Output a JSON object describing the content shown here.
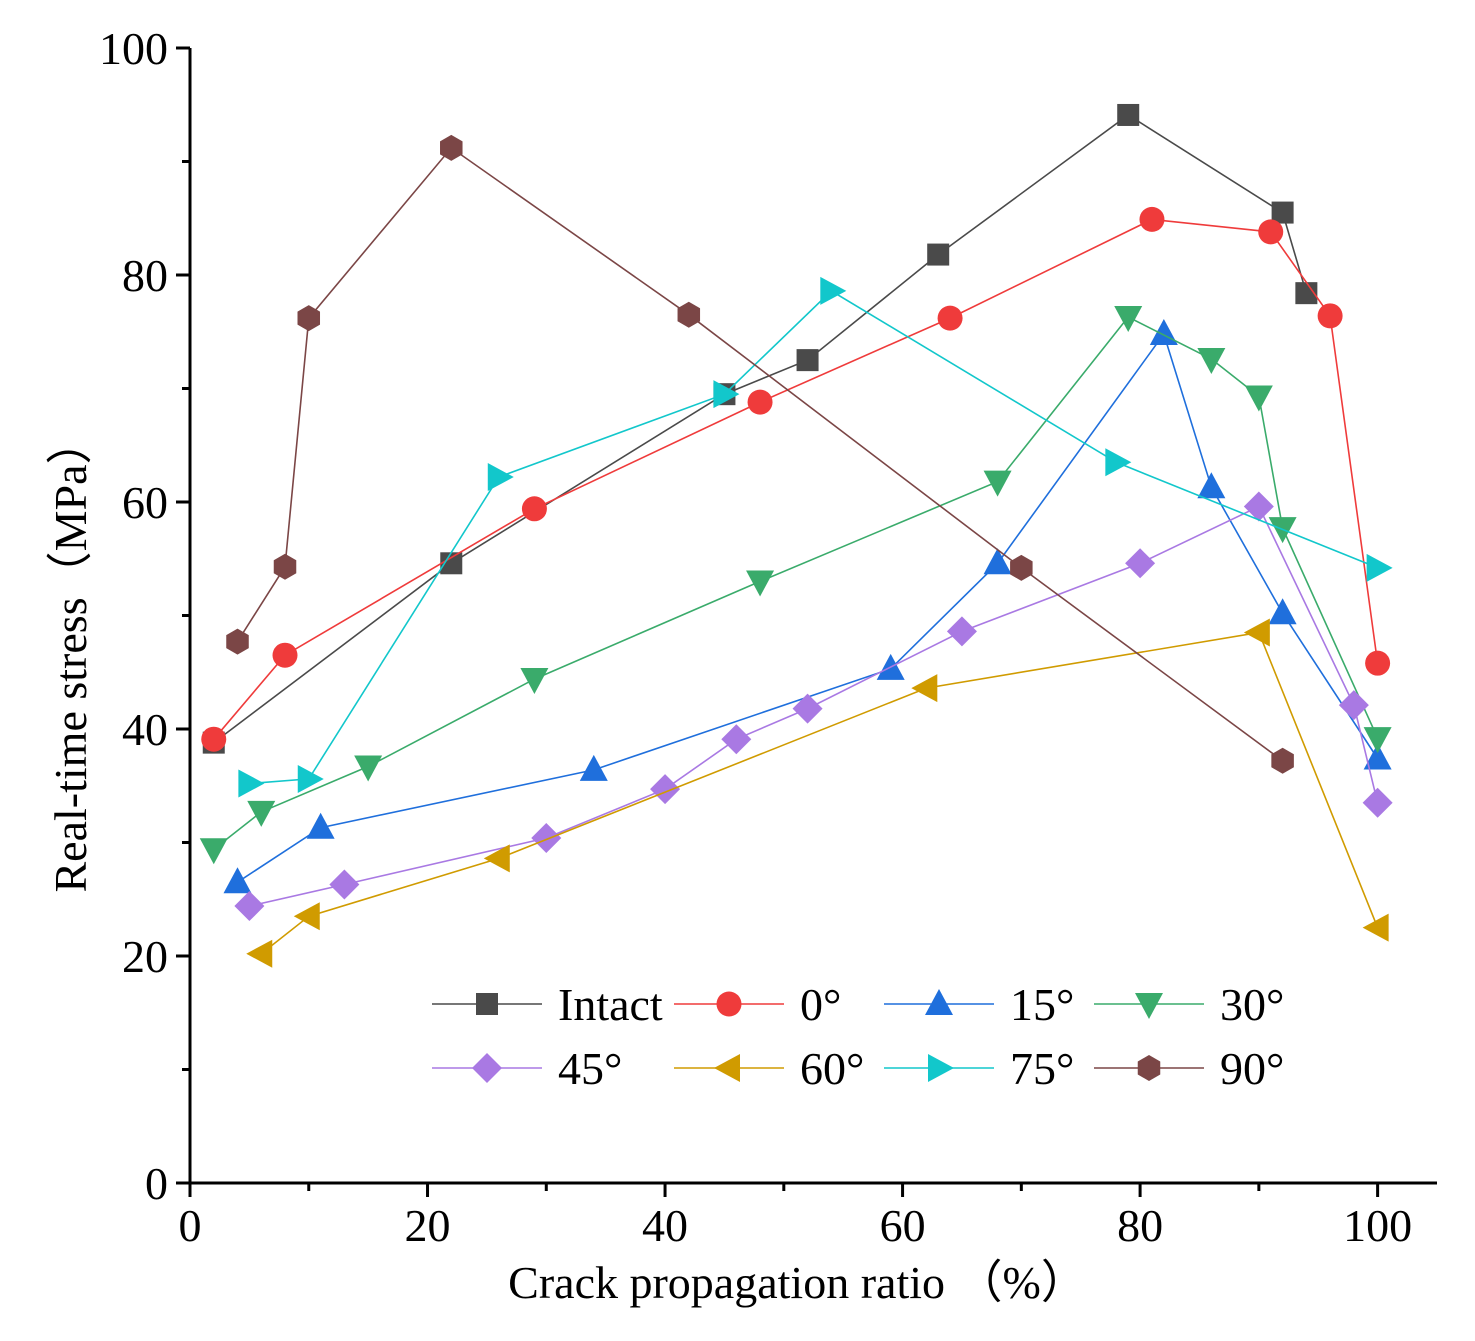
{
  "chart_data": {
    "type": "line",
    "title": "",
    "xlabel": "Crack propagation ratio （%）",
    "ylabel": "Real-time stress（MPa）",
    "xlim": [
      0,
      105
    ],
    "ylim": [
      0,
      100
    ],
    "xticks": [
      0,
      20,
      40,
      60,
      80,
      100
    ],
    "yticks": [
      0,
      20,
      40,
      60,
      80,
      100
    ],
    "xtick_labels": [
      "0",
      "20",
      "40",
      "60",
      "80",
      "100"
    ],
    "ytick_labels": [
      "0",
      "20",
      "40",
      "60",
      "80",
      "100"
    ],
    "grid": false,
    "legend_position": "bottom-center, two rows",
    "series": [
      {
        "name": "Intact",
        "color": "#4a4a4a",
        "marker": "square",
        "x": [
          2,
          22,
          45,
          52,
          63,
          79,
          92,
          94
        ],
        "y": [
          38.8,
          54.6,
          69.5,
          72.5,
          81.8,
          94.1,
          85.5,
          78.4
        ]
      },
      {
        "name": "0°",
        "color": "#ef3b3b",
        "marker": "circle",
        "x": [
          2,
          8,
          29,
          48,
          64,
          81,
          91,
          96,
          100
        ],
        "y": [
          39.1,
          46.5,
          59.4,
          68.8,
          76.2,
          84.9,
          83.8,
          76.4,
          45.8
        ]
      },
      {
        "name": "15°",
        "color": "#1f6fdc",
        "marker": "triangle-up",
        "x": [
          4,
          11,
          34,
          59,
          68,
          82,
          86,
          92,
          100
        ],
        "y": [
          26.5,
          31.3,
          36.4,
          45.3,
          54.6,
          74.8,
          61.3,
          50.2,
          37.4
        ]
      },
      {
        "name": "30°",
        "color": "#3aab6b",
        "marker": "triangle-down",
        "x": [
          2,
          6,
          15,
          29,
          48,
          68,
          79,
          86,
          90,
          92,
          100
        ],
        "y": [
          29.4,
          32.7,
          36.7,
          44.4,
          53.0,
          61.8,
          76.3,
          72.6,
          69.3,
          57.7,
          39.2
        ]
      },
      {
        "name": "45°",
        "color": "#a979e3",
        "marker": "diamond",
        "x": [
          5,
          13,
          30,
          40,
          46,
          52,
          65,
          80,
          90,
          98,
          100
        ],
        "y": [
          24.4,
          26.3,
          30.4,
          34.7,
          39.1,
          41.8,
          48.6,
          54.6,
          59.6,
          42.1,
          33.5
        ]
      },
      {
        "name": "60°",
        "color": "#d09b00",
        "marker": "triangle-left",
        "x": [
          6,
          10,
          26,
          62,
          90,
          100
        ],
        "y": [
          20.2,
          23.5,
          28.6,
          43.6,
          48.5,
          22.5
        ]
      },
      {
        "name": "75°",
        "color": "#12c7cb",
        "marker": "triangle-right",
        "x": [
          5,
          10,
          26,
          45,
          54,
          78,
          100
        ],
        "y": [
          35.2,
          35.6,
          62.2,
          69.5,
          78.6,
          63.5,
          54.2
        ]
      },
      {
        "name": "90°",
        "color": "#7b4646",
        "marker": "hexagon",
        "x": [
          4,
          8,
          10,
          22,
          42,
          70,
          92
        ],
        "y": [
          47.7,
          54.3,
          76.2,
          91.2,
          76.5,
          54.2,
          37.2
        ]
      }
    ]
  }
}
